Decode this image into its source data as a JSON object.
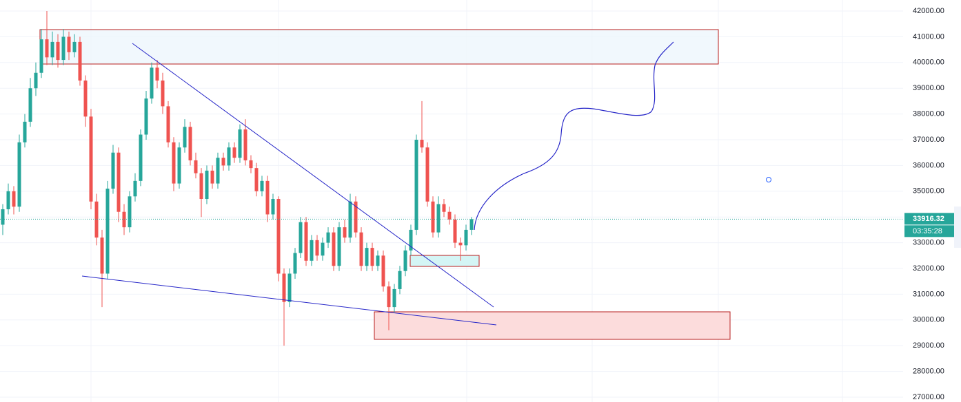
{
  "chart_data": {
    "type": "candlestick",
    "ylim": [
      26813,
      42428
    ],
    "yticks": [
      {
        "value": 42000,
        "label": "42000.00"
      },
      {
        "value": 41000,
        "label": "41000.00"
      },
      {
        "value": 40000,
        "label": "40000.00"
      },
      {
        "value": 39000,
        "label": "39000.00"
      },
      {
        "value": 38000,
        "label": "38000.00"
      },
      {
        "value": 37000,
        "label": "37000.00"
      },
      {
        "value": 36000,
        "label": "36000.00"
      },
      {
        "value": 35000,
        "label": "35000.00"
      },
      {
        "value": 34000,
        "label": "34000.00"
      },
      {
        "value": 33000,
        "label": "33000.00"
      },
      {
        "value": 32000,
        "label": "32000.00"
      },
      {
        "value": 31000,
        "label": "31000.00"
      },
      {
        "value": 30000,
        "label": "30000.00"
      },
      {
        "value": 29000,
        "label": "29000.00"
      },
      {
        "value": 28000,
        "label": "28000.00"
      },
      {
        "value": 27000,
        "label": "27000.00"
      }
    ],
    "grid": true,
    "up_color": "#26a69a",
    "down_color": "#ef5350",
    "last_price": 33916.32,
    "countdown": "03:35:28",
    "open": [
      33700,
      34300,
      35000,
      34400,
      36900,
      37700,
      39000,
      39600,
      40900,
      40200,
      40800,
      40100,
      41000,
      40400,
      40800,
      39300,
      37900,
      34600,
      33200,
      31800,
      35100,
      36500,
      34200,
      33600,
      34800,
      35400,
      37200,
      38600,
      39800,
      39300,
      38300,
      36900,
      35300,
      36700,
      37500,
      36200,
      35700,
      34700,
      35800,
      35300,
      36300,
      36000,
      36700,
      36300,
      37400,
      36200,
      35900,
      35000,
      35400,
      34100,
      34700,
      31800,
      30700,
      31800,
      32600,
      33800,
      32300,
      33100,
      32500,
      33000,
      33400,
      32100,
      33600,
      33200,
      34600,
      33400,
      32100,
      32800,
      32100,
      32500,
      31300,
      30500,
      31200,
      31900,
      32700,
      33500,
      37000,
      36700,
      34600,
      33400,
      34500,
      34200,
      33900,
      33000,
      32900,
      33500
    ],
    "high": [
      34500,
      35300,
      35200,
      37200,
      38000,
      39400,
      40000,
      41300,
      42000,
      41200,
      41100,
      41300,
      41200,
      41100,
      41000,
      39500,
      38200,
      34900,
      33500,
      35400,
      36800,
      36700,
      34500,
      35000,
      35700,
      37400,
      38900,
      40000,
      40100,
      39600,
      38500,
      37100,
      36900,
      37800,
      37700,
      36500,
      35900,
      36000,
      36000,
      36500,
      36500,
      36900,
      36900,
      37600,
      37800,
      36400,
      36100,
      35600,
      35600,
      34900,
      34800,
      32000,
      32000,
      32800,
      34000,
      34000,
      33300,
      33300,
      33200,
      33600,
      33600,
      33800,
      33900,
      34900,
      34800,
      33600,
      33000,
      33000,
      32700,
      32700,
      31500,
      31400,
      32100,
      32900,
      33700,
      37200,
      38500,
      36900,
      34800,
      34800,
      34700,
      34400,
      34100,
      33200,
      33700,
      34000
    ],
    "low": [
      33300,
      34100,
      34100,
      34200,
      36700,
      37500,
      38700,
      39400,
      39900,
      39900,
      39800,
      39900,
      40100,
      40200,
      39100,
      37500,
      34300,
      32900,
      30500,
      31600,
      34900,
      33800,
      33300,
      33400,
      34600,
      35200,
      37000,
      38400,
      39000,
      38000,
      36700,
      35000,
      35100,
      36500,
      36000,
      35500,
      34000,
      34500,
      35100,
      35100,
      35800,
      35800,
      36100,
      36100,
      36000,
      35700,
      34800,
      34800,
      33800,
      33900,
      31500,
      29000,
      30500,
      31600,
      32400,
      32100,
      32100,
      32300,
      32300,
      32800,
      31900,
      31900,
      33000,
      33000,
      33200,
      31900,
      31900,
      31900,
      31900,
      31100,
      29600,
      30300,
      31000,
      31700,
      32500,
      33300,
      36500,
      34400,
      33200,
      33200,
      34000,
      33700,
      32800,
      32300,
      32700,
      33300
    ],
    "close": [
      34300,
      35000,
      34400,
      36900,
      37700,
      39000,
      39600,
      40900,
      40200,
      40800,
      40100,
      41000,
      40400,
      40800,
      39300,
      37900,
      34600,
      33200,
      31800,
      35100,
      36500,
      34200,
      33600,
      34800,
      35400,
      37200,
      38600,
      39800,
      39300,
      38300,
      36900,
      35300,
      36700,
      37500,
      36200,
      35700,
      34700,
      35800,
      35300,
      36300,
      36000,
      36700,
      36300,
      37400,
      36200,
      35900,
      35000,
      35400,
      34100,
      34700,
      31800,
      30700,
      31800,
      32600,
      33800,
      32300,
      33100,
      32500,
      33000,
      33400,
      32100,
      33600,
      33200,
      34600,
      33400,
      32100,
      32800,
      32100,
      32500,
      31300,
      30500,
      31200,
      31900,
      32700,
      33500,
      37000,
      36700,
      34600,
      33400,
      34500,
      34200,
      33900,
      33000,
      32900,
      33500,
      33916.32
    ]
  }
}
